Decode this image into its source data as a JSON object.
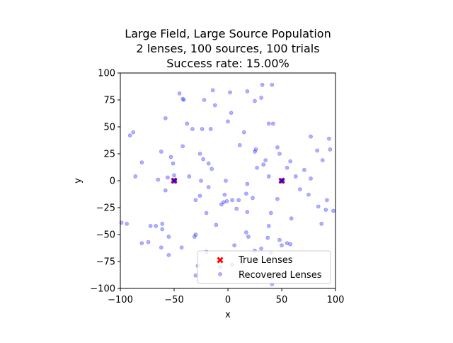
{
  "chart_data": {
    "type": "scatter",
    "title_lines": [
      "Large Field, Large Source Population",
      "2 lenses, 100 sources, 100 trials",
      "Success rate: 15.00%"
    ],
    "xlabel": "x",
    "ylabel": "y",
    "xlim": [
      -100,
      100
    ],
    "ylim": [
      -100,
      100
    ],
    "xticks": [
      -100,
      -50,
      0,
      50,
      100
    ],
    "yticks": [
      -100,
      -75,
      -50,
      -25,
      0,
      25,
      50,
      75,
      100
    ],
    "grid": false,
    "legend_position": "lower-right",
    "series": [
      {
        "name": "True Lenses",
        "marker": "x",
        "color": "#ff0000",
        "points": [
          [
            -50,
            0
          ],
          [
            50,
            0
          ]
        ]
      },
      {
        "name": "Recovered Lenses",
        "marker": "circle",
        "color": "#0000ff",
        "points": [
          [
            -50,
            0
          ],
          [
            -49,
            1
          ],
          [
            -51,
            0
          ],
          [
            -50,
            -1
          ],
          [
            -49,
            0
          ],
          [
            50,
            0
          ],
          [
            51,
            1
          ],
          [
            49,
            0
          ],
          [
            50,
            -1
          ],
          [
            51,
            0
          ],
          [
            -45,
            81
          ],
          [
            -42,
            76
          ],
          [
            -41,
            75
          ],
          [
            -22,
            75
          ],
          [
            -12,
            70
          ],
          [
            -14,
            84
          ],
          [
            2,
            82
          ],
          [
            18,
            83
          ],
          [
            32,
            89
          ],
          [
            41,
            89
          ],
          [
            25,
            74
          ],
          [
            31,
            77
          ],
          [
            3,
            63
          ],
          [
            0,
            55
          ],
          [
            15,
            45
          ],
          [
            -58,
            58
          ],
          [
            -38,
            53
          ],
          [
            -33,
            48
          ],
          [
            -91,
            42
          ],
          [
            -88,
            45
          ],
          [
            -24,
            48
          ],
          [
            -16,
            48
          ],
          [
            38,
            53
          ],
          [
            42,
            53
          ],
          [
            77,
            41
          ],
          [
            94,
            39
          ],
          [
            -42,
            32
          ],
          [
            11,
            33
          ],
          [
            25,
            27
          ],
          [
            26,
            29
          ],
          [
            46,
            31
          ],
          [
            -62,
            27
          ],
          [
            -53,
            22
          ],
          [
            -26,
            25
          ],
          [
            -23,
            20
          ],
          [
            -18,
            16
          ],
          [
            -15,
            11
          ],
          [
            35,
            19
          ],
          [
            33,
            15
          ],
          [
            48,
            25
          ],
          [
            58,
            18
          ],
          [
            71,
            10
          ],
          [
            83,
            28
          ],
          [
            88,
            19
          ],
          [
            95,
            29
          ],
          [
            -80,
            17
          ],
          [
            -51,
            16
          ],
          [
            -50,
            5
          ],
          [
            -56,
            3
          ],
          [
            -65,
            1
          ],
          [
            -86,
            4
          ],
          [
            -36,
            4
          ],
          [
            -25,
            0
          ],
          [
            -18,
            -6
          ],
          [
            -2,
            0
          ],
          [
            27,
            12
          ],
          [
            38,
            4
          ],
          [
            55,
            12
          ],
          [
            63,
            4
          ],
          [
            77,
            2
          ],
          [
            -58,
            -9
          ],
          [
            -30,
            -18
          ],
          [
            -26,
            -14
          ],
          [
            -3,
            -13
          ],
          [
            -1,
            -19
          ],
          [
            -20,
            -30
          ],
          [
            -6,
            -22
          ],
          [
            -4,
            -20
          ],
          [
            4,
            -18
          ],
          [
            10,
            -18
          ],
          [
            17,
            -12
          ],
          [
            18,
            -3
          ],
          [
            8,
            -26
          ],
          [
            18,
            -29
          ],
          [
            23,
            -16
          ],
          [
            40,
            -30
          ],
          [
            46,
            -17
          ],
          [
            59,
            -35
          ],
          [
            67,
            -8
          ],
          [
            75,
            -13
          ],
          [
            84,
            -24
          ],
          [
            91,
            -27
          ],
          [
            98,
            -28
          ],
          [
            92,
            -18
          ],
          [
            -99,
            -39
          ],
          [
            -94,
            -40
          ],
          [
            -72,
            -42
          ],
          [
            -67,
            -42
          ],
          [
            -61,
            -40
          ],
          [
            -61,
            -45
          ],
          [
            -55,
            -52
          ],
          [
            -31,
            -52
          ],
          [
            -30,
            -50
          ],
          [
            -11,
            -41
          ],
          [
            17,
            -48
          ],
          [
            19,
            -52
          ],
          [
            38,
            -42
          ],
          [
            37,
            -53
          ],
          [
            48,
            -55
          ],
          [
            50,
            -60
          ],
          [
            55,
            -58
          ],
          [
            58,
            -59
          ],
          [
            87,
            -40
          ],
          [
            -80,
            -58
          ],
          [
            -74,
            -57
          ],
          [
            -62,
            -62
          ],
          [
            -55,
            -69
          ],
          [
            -43,
            -62
          ],
          [
            -20,
            -66
          ],
          [
            -7,
            -80
          ],
          [
            6,
            -60
          ],
          [
            25,
            -65
          ],
          [
            31,
            -63
          ],
          [
            40,
            -67
          ],
          [
            -28,
            -79
          ],
          [
            -30,
            -88
          ],
          [
            4,
            -78
          ],
          [
            13,
            -76
          ],
          [
            40,
            -90
          ],
          [
            41,
            -96
          ]
        ]
      }
    ]
  }
}
